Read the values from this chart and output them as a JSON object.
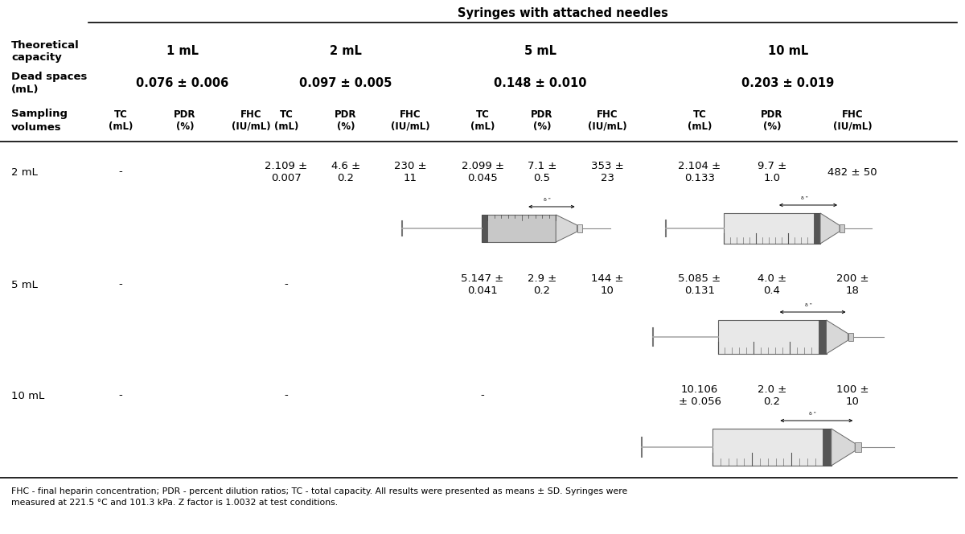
{
  "title": "Syringes with attached needles",
  "background_color": "#ffffff",
  "group_labels": [
    "1 mL",
    "2 mL",
    "5 mL",
    "10 mL"
  ],
  "dead_space_labels": [
    "0.076 ± 0.006",
    "0.097 ± 0.005",
    "0.148 ± 0.010",
    "0.203 ± 0.019"
  ],
  "subcol_labels": [
    "TC\n(mL)",
    "PDR\n(%)",
    "FHC\n(IU/mL)",
    "TC\n(mL)",
    "PDR\n(%)",
    "FHC\n(IU/mL)",
    "TC\n(mL)",
    "PDR\n(%)",
    "FHC\n(IU/mL)",
    "TC\n(mL)",
    "PDR\n(%)",
    "FHC\n(IU/mL)"
  ],
  "rows": [
    {
      "label": "2 mL",
      "data": [
        "-",
        "",
        "",
        "2.109 ±\n0.007",
        "4.6 ±\n0.2",
        "230 ±\n11",
        "2.099 ±\n0.045",
        "7.1 ±\n0.5",
        "353 ±\n23",
        "2.104 ±\n0.133",
        "9.7 ±\n1.0",
        "482 ± 50"
      ]
    },
    {
      "label": "5 mL",
      "data": [
        "-",
        "",
        "",
        "-",
        "",
        "",
        "5.147 ±\n0.041",
        "2.9 ±\n0.2",
        "144 ±\n10",
        "5.085 ±\n0.131",
        "4.0 ±\n0.4",
        "200 ±\n18"
      ]
    },
    {
      "label": "10 mL",
      "data": [
        "-",
        "",
        "",
        "-",
        "",
        "",
        "-",
        "",
        "",
        "10.106\n± 0.056",
        "2.0 ±\n0.2",
        "100 ±\n10"
      ]
    }
  ],
  "footnote": "FHC - final heparin concentration; PDR - percent dilution ratios; TC - total capacity. All results were presented as means ± SD. Syringes were\nmeasured at 221.5 °C and 101.3 kPa. Z factor is 1.0032 at test conditions."
}
